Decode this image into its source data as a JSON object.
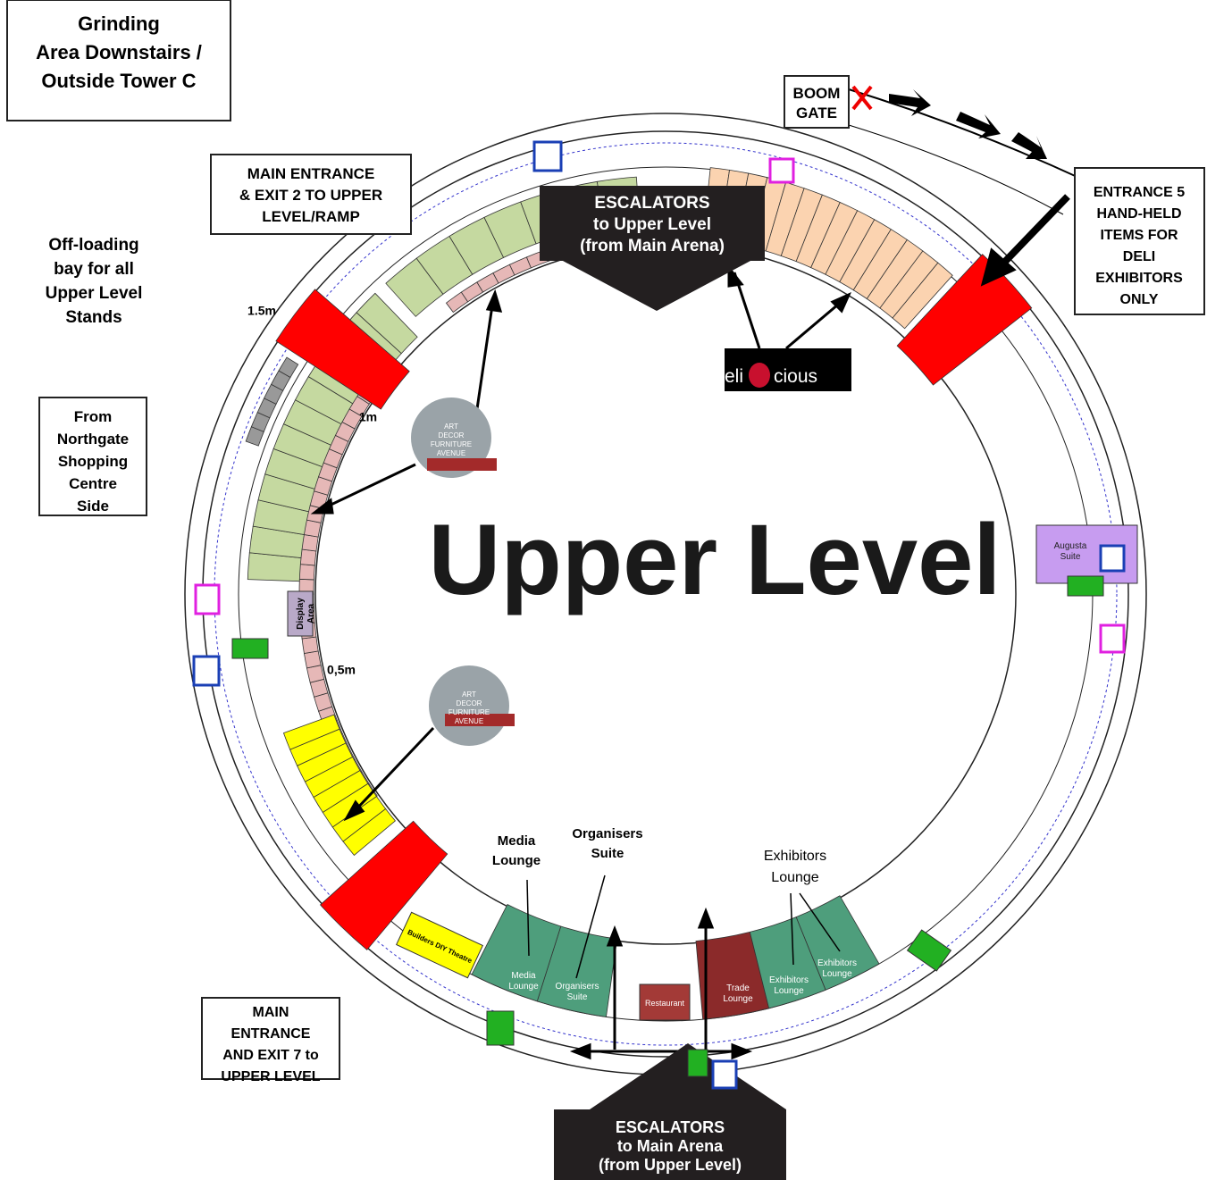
{
  "title": "Upper Level",
  "boxes": [
    {
      "lines": [
        "Grinding",
        "Area Downstairs /",
        "Outside Tower C"
      ]
    },
    {
      "lines": [
        "BOOM",
        "GATE"
      ]
    },
    {
      "lines": [
        "MAIN ENTRANCE",
        "& EXIT 2 TO UPPER",
        "LEVEL/RAMP"
      ]
    },
    {
      "lines": [
        "ENTRANCE 5",
        "HAND-HELD",
        "ITEMS FOR",
        "DELI",
        "EXHIBITORS",
        "ONLY"
      ]
    },
    {
      "lines": [
        "From",
        "Northgate",
        "Shopping",
        "Centre",
        "Side"
      ]
    },
    {
      "lines": [
        "MAIN",
        "ENTRANCE",
        "AND EXIT 7 to",
        "UPPER LEVEL"
      ]
    }
  ],
  "escalators": [
    {
      "lines": [
        "ESCALATORS",
        "to Upper Level",
        "(from Main Arena)"
      ]
    },
    {
      "lines": [
        "ESCALATORS",
        "to Main Arena",
        "(from Upper Level)"
      ]
    }
  ],
  "notes": [
    {
      "lines": [
        "Off-loading",
        "bay for all",
        "Upper Level",
        "Stands"
      ]
    },
    {
      "lines": [
        "Media",
        "Lounge"
      ]
    },
    {
      "lines": [
        "Organisers",
        "Suite"
      ]
    },
    {
      "lines": [
        "Exhibitors",
        "Lounge"
      ]
    }
  ],
  "distances": [
    "1.5m",
    "1m",
    "0,5m"
  ],
  "rooms": [
    {
      "lines": [
        "Augusta",
        "Suite"
      ]
    },
    {
      "lines": [
        "Media",
        "Lounge"
      ]
    },
    {
      "lines": [
        "Organisers",
        "Suite"
      ]
    },
    {
      "lines": [
        "Restaurant"
      ]
    },
    {
      "lines": [
        "Trade",
        "Lounge"
      ]
    },
    {
      "lines": [
        "Exhibitors",
        "Lounge"
      ]
    },
    {
      "lines": [
        "Exhibitors",
        "Lounge"
      ]
    },
    {
      "lines": [
        "Builders DIY Theatre"
      ]
    },
    {
      "lines": [
        "Display",
        "Area"
      ]
    }
  ],
  "logos": {
    "delicious": [
      "deli",
      "cious"
    ],
    "art_decor": [
      "ART",
      "DECOR",
      "FURNITURE",
      "AVENUE"
    ]
  }
}
